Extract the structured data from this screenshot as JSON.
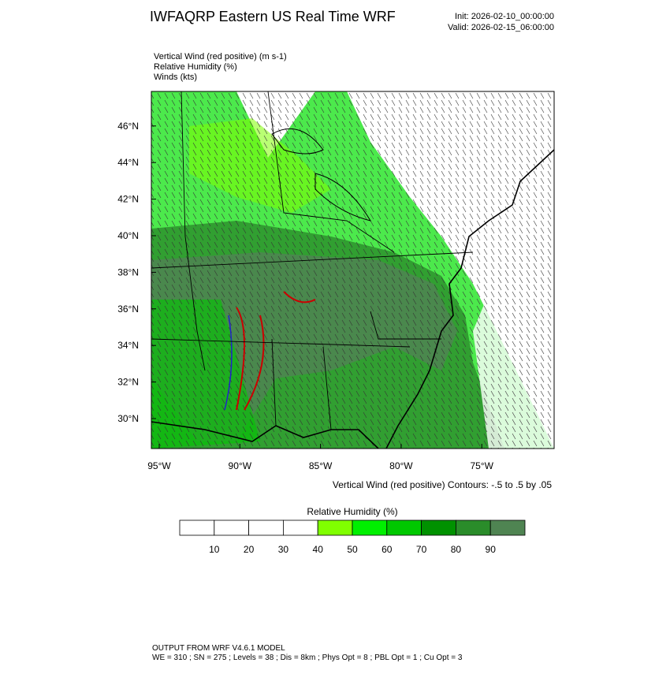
{
  "header": {
    "title": "IWFAQRP Eastern US Real Time WRF",
    "init": "Init: 2026-02-10_00:00:00",
    "valid": "Valid: 2026-02-15_06:00:00"
  },
  "fields": [
    "Vertical Wind (red positive)   (m s-1)",
    "Relative Humidity   (%)",
    "Winds   (kts)"
  ],
  "map": {
    "lat_labels": [
      "30°N",
      "32°N",
      "34°N",
      "36°N",
      "38°N",
      "40°N",
      "42°N",
      "44°N",
      "46°N"
    ],
    "lon_labels": [
      "95°W",
      "90°W",
      "85°W",
      "80°W",
      "75°W"
    ],
    "contour_note": "Vertical Wind (red positive) Contours: -.5 to .5 by .05"
  },
  "colorbar": {
    "title": "Relative Humidity  (%)",
    "levels": [
      10,
      20,
      30,
      40,
      50,
      60,
      70,
      80,
      90
    ],
    "colors": [
      "#ffffff",
      "#ffffff",
      "#ffffff",
      "#ffffff",
      "#80ff00",
      "#00f000",
      "#00c800",
      "#009100",
      "#2a8c2a",
      "#4f8452"
    ]
  },
  "footer": [
    "OUTPUT FROM WRF V4.6.1 MODEL",
    "WE = 310 ; SN = 275 ; Levels = 38 ; Dis = 8km ; Phys Opt = 8 ; PBL Opt = 1 ; Cu Opt = 3"
  ]
}
